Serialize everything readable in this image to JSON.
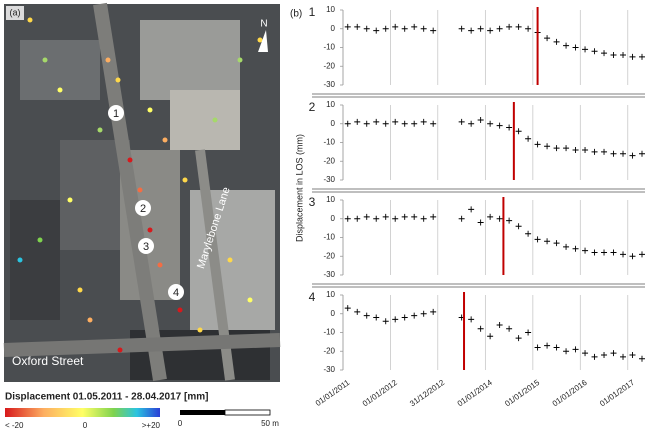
{
  "panel_a": {
    "label": "(a)",
    "markers": [
      "1",
      "2",
      "3",
      "4"
    ],
    "streets": [
      "Marylebone Lane",
      "Oxford Street"
    ],
    "north": "N",
    "colorbar": {
      "title": "Displacement 01.05.2011 - 28.04.2017  [mm]",
      "labels": [
        "< -20",
        "0",
        ">+20"
      ]
    },
    "scalebar": [
      "0",
      "50 m"
    ]
  },
  "panel_b": {
    "label": "(b)",
    "ylabel": "Displacement in LOS (mm)"
  },
  "chart_data": [
    {
      "type": "scatter",
      "label": "1",
      "color": "#000000",
      "event_color": "#c00000",
      "grid": "x",
      "x": [
        2011.1,
        2011.3,
        2011.5,
        2011.7,
        2011.9,
        2012.1,
        2012.3,
        2012.5,
        2012.7,
        2012.9,
        2013.5,
        2013.7,
        2013.9,
        2014.1,
        2014.3,
        2014.5,
        2014.7,
        2014.9,
        2015.1,
        2015.3,
        2015.5,
        2015.7,
        2015.9,
        2016.1,
        2016.3,
        2016.5,
        2016.7,
        2016.9,
        2017.1,
        2017.3
      ],
      "values": [
        1,
        1,
        0,
        -1,
        0,
        1,
        0,
        1,
        0,
        -1,
        0,
        -1,
        0,
        -1,
        0,
        1,
        1,
        0,
        -2,
        -5,
        -7,
        -9,
        -10,
        -11,
        -12,
        -13,
        -14,
        -14,
        -15,
        -15
      ],
      "event_x": 2015.1,
      "xlim": [
        2011,
        2017.3
      ],
      "xticks": [
        2011,
        2012,
        2012.997,
        2014,
        2015,
        2016,
        2017
      ],
      "ylim": [
        -30,
        10
      ],
      "yticks": [
        10,
        0,
        -10,
        -20,
        -30
      ]
    },
    {
      "type": "scatter",
      "label": "2",
      "color": "#000000",
      "event_color": "#c00000",
      "grid": "x",
      "x": [
        2011.1,
        2011.3,
        2011.5,
        2011.7,
        2011.9,
        2012.1,
        2012.3,
        2012.5,
        2012.7,
        2012.9,
        2013.5,
        2013.7,
        2013.9,
        2014.1,
        2014.3,
        2014.5,
        2014.7,
        2014.9,
        2015.1,
        2015.3,
        2015.5,
        2015.7,
        2015.9,
        2016.1,
        2016.3,
        2016.5,
        2016.7,
        2016.9,
        2017.1,
        2017.3
      ],
      "values": [
        0,
        1,
        0,
        1,
        0,
        1,
        0,
        0,
        1,
        0,
        1,
        0,
        2,
        0,
        -1,
        -2,
        -4,
        -8,
        -11,
        -12,
        -13,
        -13,
        -14,
        -14,
        -15,
        -15,
        -16,
        -16,
        -17,
        -16
      ],
      "event_x": 2014.6,
      "xlim": [
        2011,
        2017.3
      ],
      "xticks": [
        2011,
        2012,
        2012.997,
        2014,
        2015,
        2016,
        2017
      ],
      "ylim": [
        -30,
        10
      ],
      "yticks": [
        10,
        0,
        -10,
        -20,
        -30
      ]
    },
    {
      "type": "scatter",
      "label": "3",
      "color": "#000000",
      "event_color": "#c00000",
      "grid": "x",
      "x": [
        2011.1,
        2011.3,
        2011.5,
        2011.7,
        2011.9,
        2012.1,
        2012.3,
        2012.5,
        2012.7,
        2012.9,
        2013.5,
        2013.7,
        2013.9,
        2014.1,
        2014.3,
        2014.5,
        2014.7,
        2014.9,
        2015.1,
        2015.3,
        2015.5,
        2015.7,
        2015.9,
        2016.1,
        2016.3,
        2016.5,
        2016.7,
        2016.9,
        2017.1,
        2017.3
      ],
      "values": [
        0,
        0,
        1,
        0,
        1,
        0,
        1,
        1,
        0,
        1,
        0,
        5,
        -2,
        1,
        0,
        -1,
        -4,
        -8,
        -11,
        -12,
        -13,
        -15,
        -16,
        -17,
        -18,
        -18,
        -18,
        -19,
        -20,
        -19
      ],
      "event_x": 2014.38,
      "xlim": [
        2011,
        2017.3
      ],
      "xticks": [
        2011,
        2012,
        2012.997,
        2014,
        2015,
        2016,
        2017
      ],
      "ylim": [
        -30,
        10
      ],
      "yticks": [
        10,
        0,
        -10,
        -20,
        -30
      ]
    },
    {
      "type": "scatter",
      "label": "4",
      "color": "#000000",
      "event_color": "#c00000",
      "grid": "x",
      "x": [
        2011.1,
        2011.3,
        2011.5,
        2011.7,
        2011.9,
        2012.1,
        2012.3,
        2012.5,
        2012.7,
        2012.9,
        2013.5,
        2013.7,
        2013.9,
        2014.1,
        2014.3,
        2014.5,
        2014.7,
        2014.9,
        2015.1,
        2015.3,
        2015.5,
        2015.7,
        2015.9,
        2016.1,
        2016.3,
        2016.5,
        2016.7,
        2016.9,
        2017.1,
        2017.3
      ],
      "values": [
        3,
        1,
        -1,
        -2,
        -4,
        -3,
        -2,
        -1,
        0,
        1,
        -2,
        -3,
        -8,
        -12,
        -6,
        -8,
        -13,
        -10,
        -18,
        -17,
        -18,
        -20,
        -19,
        -21,
        -23,
        -22,
        -21,
        -23,
        -22,
        -24
      ],
      "event_x": 2013.55,
      "xlim": [
        2011,
        2017.3
      ],
      "xticks": [
        {
          "value": 2011,
          "label": "01/01/2011"
        },
        {
          "value": 2012,
          "label": "01/01/2012"
        },
        {
          "value": 2012.997,
          "label": "31/12/2012"
        },
        {
          "value": 2014,
          "label": "01/01/2014"
        },
        {
          "value": 2015,
          "label": "01/01/2015"
        },
        {
          "value": 2016,
          "label": "01/01/2016"
        },
        {
          "value": 2017,
          "label": "01/01/2017"
        }
      ],
      "ylim": [
        -30,
        10
      ],
      "yticks": [
        10,
        0,
        -10,
        -20,
        -30
      ]
    }
  ]
}
